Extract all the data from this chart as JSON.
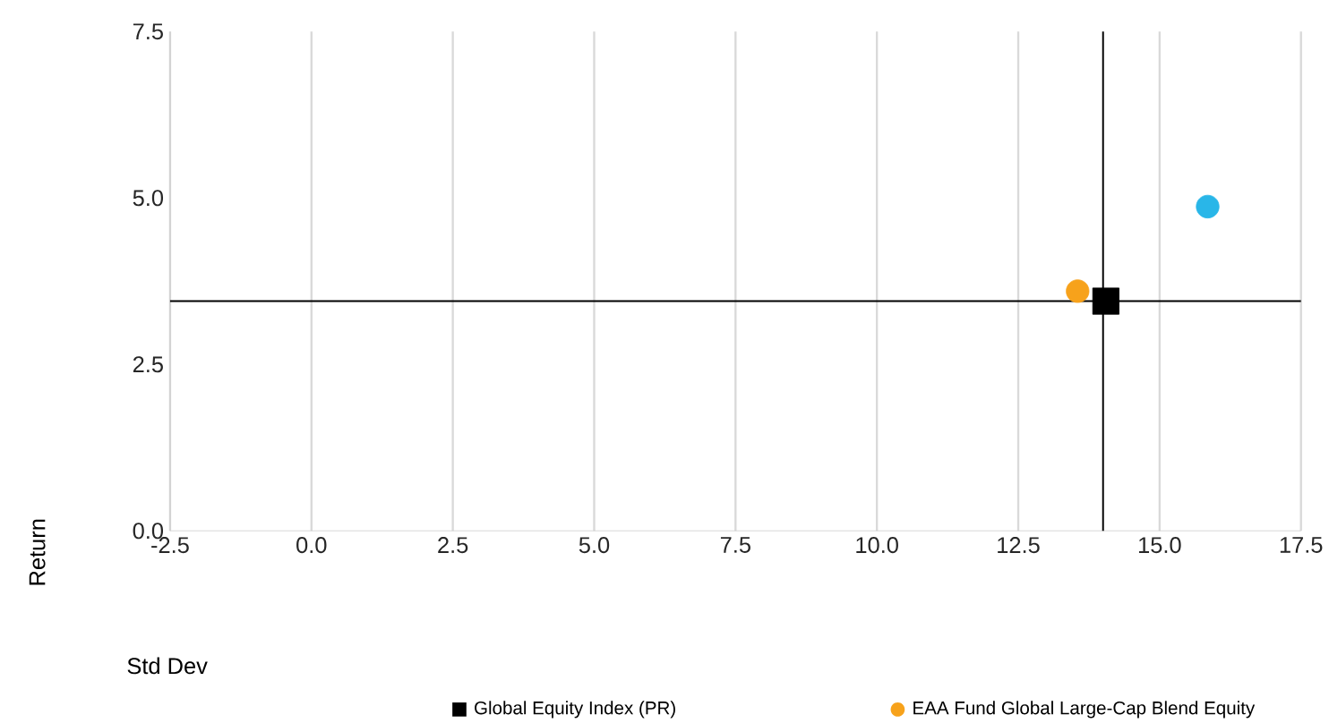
{
  "chart_data": {
    "type": "scatter",
    "xlabel": "Std Dev",
    "ylabel": "Return",
    "xlim": [
      -2.5,
      17.5
    ],
    "ylim": [
      0,
      7.5
    ],
    "xticks": [
      {
        "value": -2.5,
        "label": "-2.5"
      },
      {
        "value": 0,
        "label": "0.0"
      },
      {
        "value": 2.5,
        "label": "2.5"
      },
      {
        "value": 5,
        "label": "5.0"
      },
      {
        "value": 7.5,
        "label": "7.5"
      },
      {
        "value": 10,
        "label": "10.0"
      },
      {
        "value": 12.5,
        "label": "12.5"
      },
      {
        "value": 15,
        "label": "15.0"
      },
      {
        "value": 17.5,
        "label": "17.5"
      }
    ],
    "yticks": [
      {
        "value": 0,
        "label": "0.0"
      },
      {
        "value": 2.5,
        "label": "2.5"
      },
      {
        "value": 5,
        "label": "5.0"
      },
      {
        "value": 7.5,
        "label": "7.5"
      }
    ],
    "grid": "x",
    "legend": "bottom",
    "ref_lines": [
      {
        "axis": "x",
        "value": 14.0,
        "color": "#000000"
      },
      {
        "axis": "y",
        "value": 3.45,
        "color": "#000000"
      }
    ],
    "series": [
      {
        "color": "#29b6e8",
        "marker": "circle",
        "x": [
          15.85
        ],
        "values": [
          4.87
        ]
      },
      {
        "name": "Global Equity Index (PR)",
        "color": "#000000",
        "marker": "square",
        "x": [
          14.05
        ],
        "values": [
          3.45
        ]
      },
      {
        "name": "EAA Fund Global Large-Cap Blend Equity",
        "color": "#f7a21b",
        "marker": "circle",
        "x": [
          13.55
        ],
        "values": [
          3.6
        ]
      }
    ]
  }
}
